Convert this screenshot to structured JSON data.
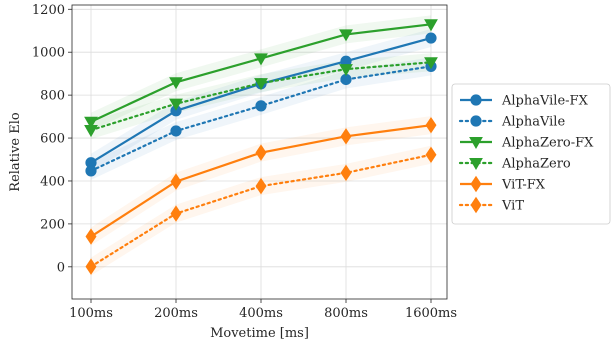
{
  "chart_data": {
    "type": "line",
    "categories": [
      "100ms",
      "200ms",
      "400ms",
      "800ms",
      "1600ms"
    ],
    "xlabel": "Movetime [ms]",
    "ylabel": "Relative Elo",
    "ylim": [
      -150,
      1220
    ],
    "yticks": [
      0,
      200,
      400,
      600,
      800,
      1000,
      1200
    ],
    "grid": true,
    "legend_position": "right",
    "series": [
      {
        "name": "AlphaVile-FX",
        "values": [
          485,
          727,
          853,
          958,
          1066
        ],
        "color": "#1f77b4",
        "dash": "solid",
        "marker": "circle"
      },
      {
        "name": "AlphaVile",
        "values": [
          447,
          633,
          750,
          873,
          934
        ],
        "color": "#1f77b4",
        "dash": "dotted",
        "marker": "circle"
      },
      {
        "name": "AlphaZero-FX",
        "values": [
          676,
          860,
          971,
          1083,
          1130
        ],
        "color": "#2ca02c",
        "dash": "solid",
        "marker": "triangle-down"
      },
      {
        "name": "AlphaZero",
        "values": [
          637,
          760,
          856,
          921,
          953
        ],
        "color": "#2ca02c",
        "dash": "dotted",
        "marker": "triangle-down"
      },
      {
        "name": "ViT-FX",
        "values": [
          141,
          397,
          532,
          608,
          660
        ],
        "color": "#ff7f0e",
        "dash": "solid",
        "marker": "diamond"
      },
      {
        "name": "ViT",
        "values": [
          1,
          248,
          376,
          438,
          522
        ],
        "color": "#ff7f0e",
        "dash": "dotted",
        "marker": "diamond"
      }
    ]
  }
}
